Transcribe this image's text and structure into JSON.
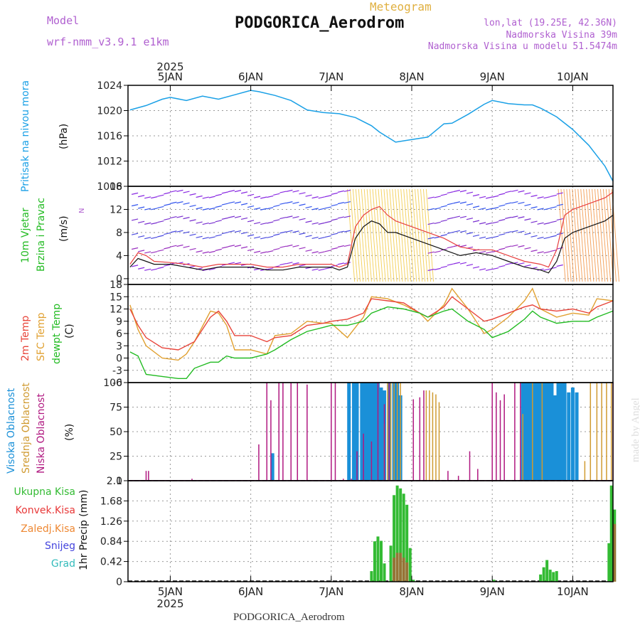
{
  "header": {
    "model_label": "Model",
    "model_value": "wrf-nmm_v3.9.1 e1km",
    "meteogram": "Meteogram",
    "station": "PODGORICA_Aerodrom",
    "lonlat": "lon,lat (19.25E, 42.36N)",
    "altitude": "Nadmorska Visina 39m",
    "model_altitude": "Nadmorska Visina u modelu 51.5474m"
  },
  "footer": {
    "station": "PODGORICA_Aerodrom",
    "credit": "made by Angel"
  },
  "time_axis": {
    "year": "2025",
    "days": [
      "5JAN",
      "6JAN",
      "7JAN",
      "8JAN",
      "9JAN",
      "10JAN"
    ]
  },
  "colors": {
    "pressure": "#1aa0e6",
    "temp2m": "#e8443a",
    "sfc": "#e0a030",
    "dew": "#22bb22",
    "visoka": "#1a90d8",
    "srednja": "#d09a30",
    "niska": "#b01880",
    "ukupna": "#33bb33",
    "konvek": "#e83838",
    "zaledj": "#ee8833",
    "snijeg": "#4444dd",
    "grad": "#33bbbb"
  },
  "chart_data": [
    {
      "type": "line",
      "panel": "pressure",
      "ylabel_left": "Pritisak na nivou mora",
      "ylabel_unit": "(hPa)",
      "ylim": [
        1008,
        1024
      ],
      "yticks": [
        "1024",
        "1020",
        "1016",
        "1012",
        "1008"
      ],
      "x_days": [
        4.5,
        4.7,
        4.9,
        5.0,
        5.2,
        5.4,
        5.6,
        5.8,
        6.0,
        6.1,
        6.3,
        6.5,
        6.7,
        6.9,
        7.1,
        7.3,
        7.5,
        7.6,
        7.8,
        8.0,
        8.2,
        8.4,
        8.5,
        8.7,
        8.9,
        9.0,
        9.2,
        9.4,
        9.5,
        9.6,
        9.8,
        10.0,
        10.2,
        10.4,
        10.5
      ],
      "series": [
        {
          "values": [
            1020.1,
            1020.8,
            1021.8,
            1022.1,
            1021.6,
            1022.3,
            1021.8,
            1022.5,
            1023.2,
            1023.0,
            1022.4,
            1021.6,
            1020.1,
            1019.7,
            1019.5,
            1018.9,
            1017.6,
            1016.6,
            1015.0,
            1015.4,
            1015.8,
            1017.9,
            1018.0,
            1019.4,
            1021.0,
            1021.6,
            1021.1,
            1020.9,
            1020.9,
            1020.4,
            1019.0,
            1017.0,
            1014.5,
            1011.2,
            1008.8
          ]
        }
      ]
    },
    {
      "type": "line",
      "panel": "wind",
      "ylabel_left": [
        "10m Vjetar",
        "Brzina i Pravac"
      ],
      "ylabel_unit": "(m/s)",
      "ylim": [
        -1,
        16
      ],
      "yticks": [
        "16",
        "12",
        "8",
        "4",
        "0"
      ],
      "x_days": [
        4.5,
        4.6,
        4.7,
        4.8,
        5.0,
        5.2,
        5.4,
        5.6,
        5.8,
        6.0,
        6.2,
        6.4,
        6.6,
        6.8,
        7.0,
        7.1,
        7.2,
        7.3,
        7.4,
        7.5,
        7.6,
        7.7,
        7.8,
        8.0,
        8.2,
        8.4,
        8.6,
        8.8,
        9.0,
        9.2,
        9.4,
        9.6,
        9.7,
        9.8,
        9.9,
        10.0,
        10.2,
        10.4,
        10.5
      ],
      "series": [
        {
          "name": "",
          "values": [
            2.0,
            3.5,
            3.0,
            2.5,
            2.5,
            2.0,
            1.5,
            2.0,
            2.0,
            2.0,
            1.5,
            1.5,
            2.0,
            2.0,
            2.0,
            1.5,
            2.0,
            7.0,
            9.0,
            10.0,
            9.5,
            8.0,
            8.0,
            7.0,
            6.0,
            5.0,
            4.0,
            4.5,
            4.0,
            3.0,
            2.0,
            1.5,
            1.0,
            3.0,
            7.0,
            8.0,
            9.0,
            10.0,
            11.0
          ]
        },
        {
          "name": "",
          "values": [
            2.5,
            4.5,
            4.0,
            3.0,
            2.8,
            2.5,
            2.0,
            2.5,
            2.5,
            2.5,
            2.0,
            2.0,
            2.5,
            2.5,
            2.5,
            2.0,
            2.5,
            9.0,
            11.0,
            12.0,
            12.5,
            11.0,
            10.0,
            9.0,
            8.0,
            7.0,
            5.5,
            5.0,
            5.0,
            4.0,
            3.0,
            2.5,
            2.0,
            5.0,
            11.0,
            12.0,
            13.0,
            14.0,
            15.0
          ]
        }
      ]
    },
    {
      "type": "line",
      "panel": "temperature",
      "ylabel_left": [
        "2m Temp",
        "SFC Temp",
        "dewpt Temp"
      ],
      "ylabel_unit": "(C)",
      "ylim": [
        -6,
        18
      ],
      "yticks": [
        "18",
        "15",
        "12",
        "9",
        "6",
        "3",
        "0",
        "-3",
        "-6"
      ],
      "x_days": [
        4.5,
        4.6,
        4.7,
        4.9,
        5.1,
        5.2,
        5.3,
        5.5,
        5.6,
        5.7,
        5.8,
        6.0,
        6.2,
        6.3,
        6.5,
        6.7,
        6.9,
        7.0,
        7.2,
        7.4,
        7.5,
        7.7,
        7.9,
        8.1,
        8.2,
        8.4,
        8.5,
        8.7,
        8.9,
        9.0,
        9.2,
        9.4,
        9.5,
        9.6,
        9.8,
        10.0,
        10.2,
        10.3,
        10.5
      ],
      "series": [
        {
          "name": "2m Temp",
          "values": [
            12.0,
            8.0,
            5.0,
            2.5,
            2.0,
            3.0,
            4.0,
            10.0,
            11.5,
            9.0,
            5.5,
            5.5,
            4.0,
            5.0,
            5.5,
            8.0,
            8.5,
            9.0,
            9.5,
            11.0,
            14.5,
            14.0,
            13.5,
            11.0,
            10.0,
            12.5,
            15.0,
            12.0,
            9.0,
            9.5,
            11.0,
            12.5,
            13.0,
            12.0,
            11.5,
            12.0,
            11.0,
            12.5,
            14.0
          ]
        },
        {
          "name": "SFC Temp",
          "values": [
            13.0,
            7.0,
            3.0,
            0.0,
            -0.5,
            1.0,
            4.0,
            11.5,
            11.0,
            8.0,
            2.0,
            2.0,
            1.0,
            5.5,
            6.0,
            9.0,
            8.5,
            8.5,
            5.0,
            10.0,
            15.0,
            14.5,
            13.0,
            11.0,
            9.0,
            13.0,
            17.0,
            12.0,
            6.0,
            7.0,
            10.0,
            14.0,
            17.0,
            12.0,
            10.0,
            11.0,
            10.5,
            14.5,
            14.0
          ]
        },
        {
          "name": "dewpt Temp",
          "values": [
            1.5,
            0.5,
            -4.0,
            -4.5,
            -5.0,
            -5.0,
            -2.5,
            -1.0,
            -1.0,
            0.5,
            0.0,
            0.0,
            1.0,
            2.0,
            4.5,
            6.5,
            7.5,
            8.0,
            8.0,
            9.0,
            11.0,
            12.5,
            12.0,
            11.0,
            10.0,
            11.5,
            12.0,
            9.0,
            7.0,
            5.0,
            6.5,
            9.5,
            11.5,
            10.0,
            8.5,
            9.0,
            9.0,
            10.0,
            11.5
          ]
        }
      ]
    },
    {
      "type": "bar",
      "panel": "clouds",
      "ylabel_left": [
        "Visoka Oblacnost",
        "Srednja Oblacnost",
        "Niska Oblacnost"
      ],
      "ylabel_unit": "(%)",
      "ylim": [
        0,
        100
      ],
      "yticks": [
        "100",
        "75",
        "50",
        "25",
        "0"
      ],
      "series": [
        {
          "name": "Visoka Oblacnost",
          "x_days": [
            6.27,
            7.22,
            7.28,
            7.32,
            7.38,
            7.42,
            7.46,
            7.5,
            7.54,
            7.58,
            7.62,
            7.66,
            7.72,
            7.78,
            7.82,
            7.86,
            9.38,
            9.42,
            9.46,
            9.5,
            9.54,
            9.58,
            9.62,
            9.66,
            9.7,
            9.74,
            9.78,
            9.82,
            9.86,
            9.9,
            9.95,
            10.0,
            10.05
          ],
          "values": [
            28,
            100,
            100,
            100,
            100,
            100,
            100,
            100,
            100,
            100,
            95,
            92,
            100,
            100,
            100,
            87,
            100,
            100,
            100,
            100,
            100,
            100,
            100,
            100,
            100,
            100,
            87,
            100,
            100,
            100,
            90,
            95,
            90
          ]
        },
        {
          "name": "Srednja Oblacnost",
          "x_days": [
            7.66,
            7.7,
            7.74,
            7.78,
            7.82,
            7.86,
            8.18,
            8.22,
            8.26,
            8.3,
            8.34,
            9.38,
            9.5,
            9.62,
            10.15,
            10.22,
            10.3,
            10.36,
            10.42,
            10.48
          ],
          "values": [
            58,
            100,
            100,
            100,
            100,
            100,
            92,
            92,
            90,
            88,
            80,
            68,
            100,
            100,
            20,
            100,
            100,
            100,
            100,
            100
          ]
        },
        {
          "name": "Niska Oblacnost",
          "x_days": [
            4.7,
            4.73,
            5.27,
            6.1,
            6.2,
            6.25,
            6.35,
            6.4,
            6.5,
            6.58,
            6.7,
            7.0,
            7.05,
            7.15,
            7.25,
            7.32,
            7.4,
            7.5,
            7.58,
            7.66,
            7.72,
            8.02,
            8.1,
            8.15,
            8.45,
            8.58,
            8.72,
            8.82,
            9.0,
            9.05,
            9.1,
            9.15,
            9.28,
            9.35,
            10.5
          ],
          "values": [
            10,
            10,
            2,
            37,
            100,
            82,
            100,
            100,
            100,
            100,
            98,
            100,
            100,
            2,
            2,
            30,
            48,
            40,
            100,
            78,
            100,
            83,
            85,
            92,
            10,
            5,
            30,
            12,
            100,
            90,
            82,
            88,
            100,
            100,
            100
          ]
        }
      ]
    },
    {
      "type": "bar",
      "panel": "precipitation",
      "legend": [
        "Ukupna Kisa",
        "Konvek.Kisa",
        "Zaledj.Kisa",
        "Snijeg",
        "Grad"
      ],
      "ylabel_unit": "1hr Precip (mm)",
      "ylim": [
        0,
        2.1
      ],
      "yticks": [
        "2.1",
        "1.68",
        "1.26",
        "0.84",
        "0.42",
        "0"
      ],
      "series": [
        {
          "name": "Ukupna Kisa",
          "x_days": [
            7.5,
            7.54,
            7.58,
            7.62,
            7.66,
            7.74,
            7.78,
            7.82,
            7.86,
            7.9,
            7.94,
            7.98,
            8.02,
            9.02,
            9.6,
            9.64,
            9.68,
            9.72,
            9.76,
            9.8,
            10.45,
            10.48,
            10.52
          ],
          "values": [
            0.22,
            0.84,
            0.94,
            0.85,
            0.38,
            0.75,
            1.8,
            2.0,
            1.94,
            1.83,
            1.6,
            0.7,
            0.04,
            0.04,
            0.15,
            0.3,
            0.45,
            0.25,
            0.2,
            0.22,
            0.8,
            2.0,
            1.5
          ]
        },
        {
          "name": "Konvek.Kisa",
          "x_days": [
            7.78,
            7.82,
            7.86,
            7.9,
            7.94,
            10.52
          ],
          "values": [
            0.5,
            0.6,
            0.6,
            0.5,
            0.4,
            1.2
          ]
        }
      ]
    }
  ]
}
